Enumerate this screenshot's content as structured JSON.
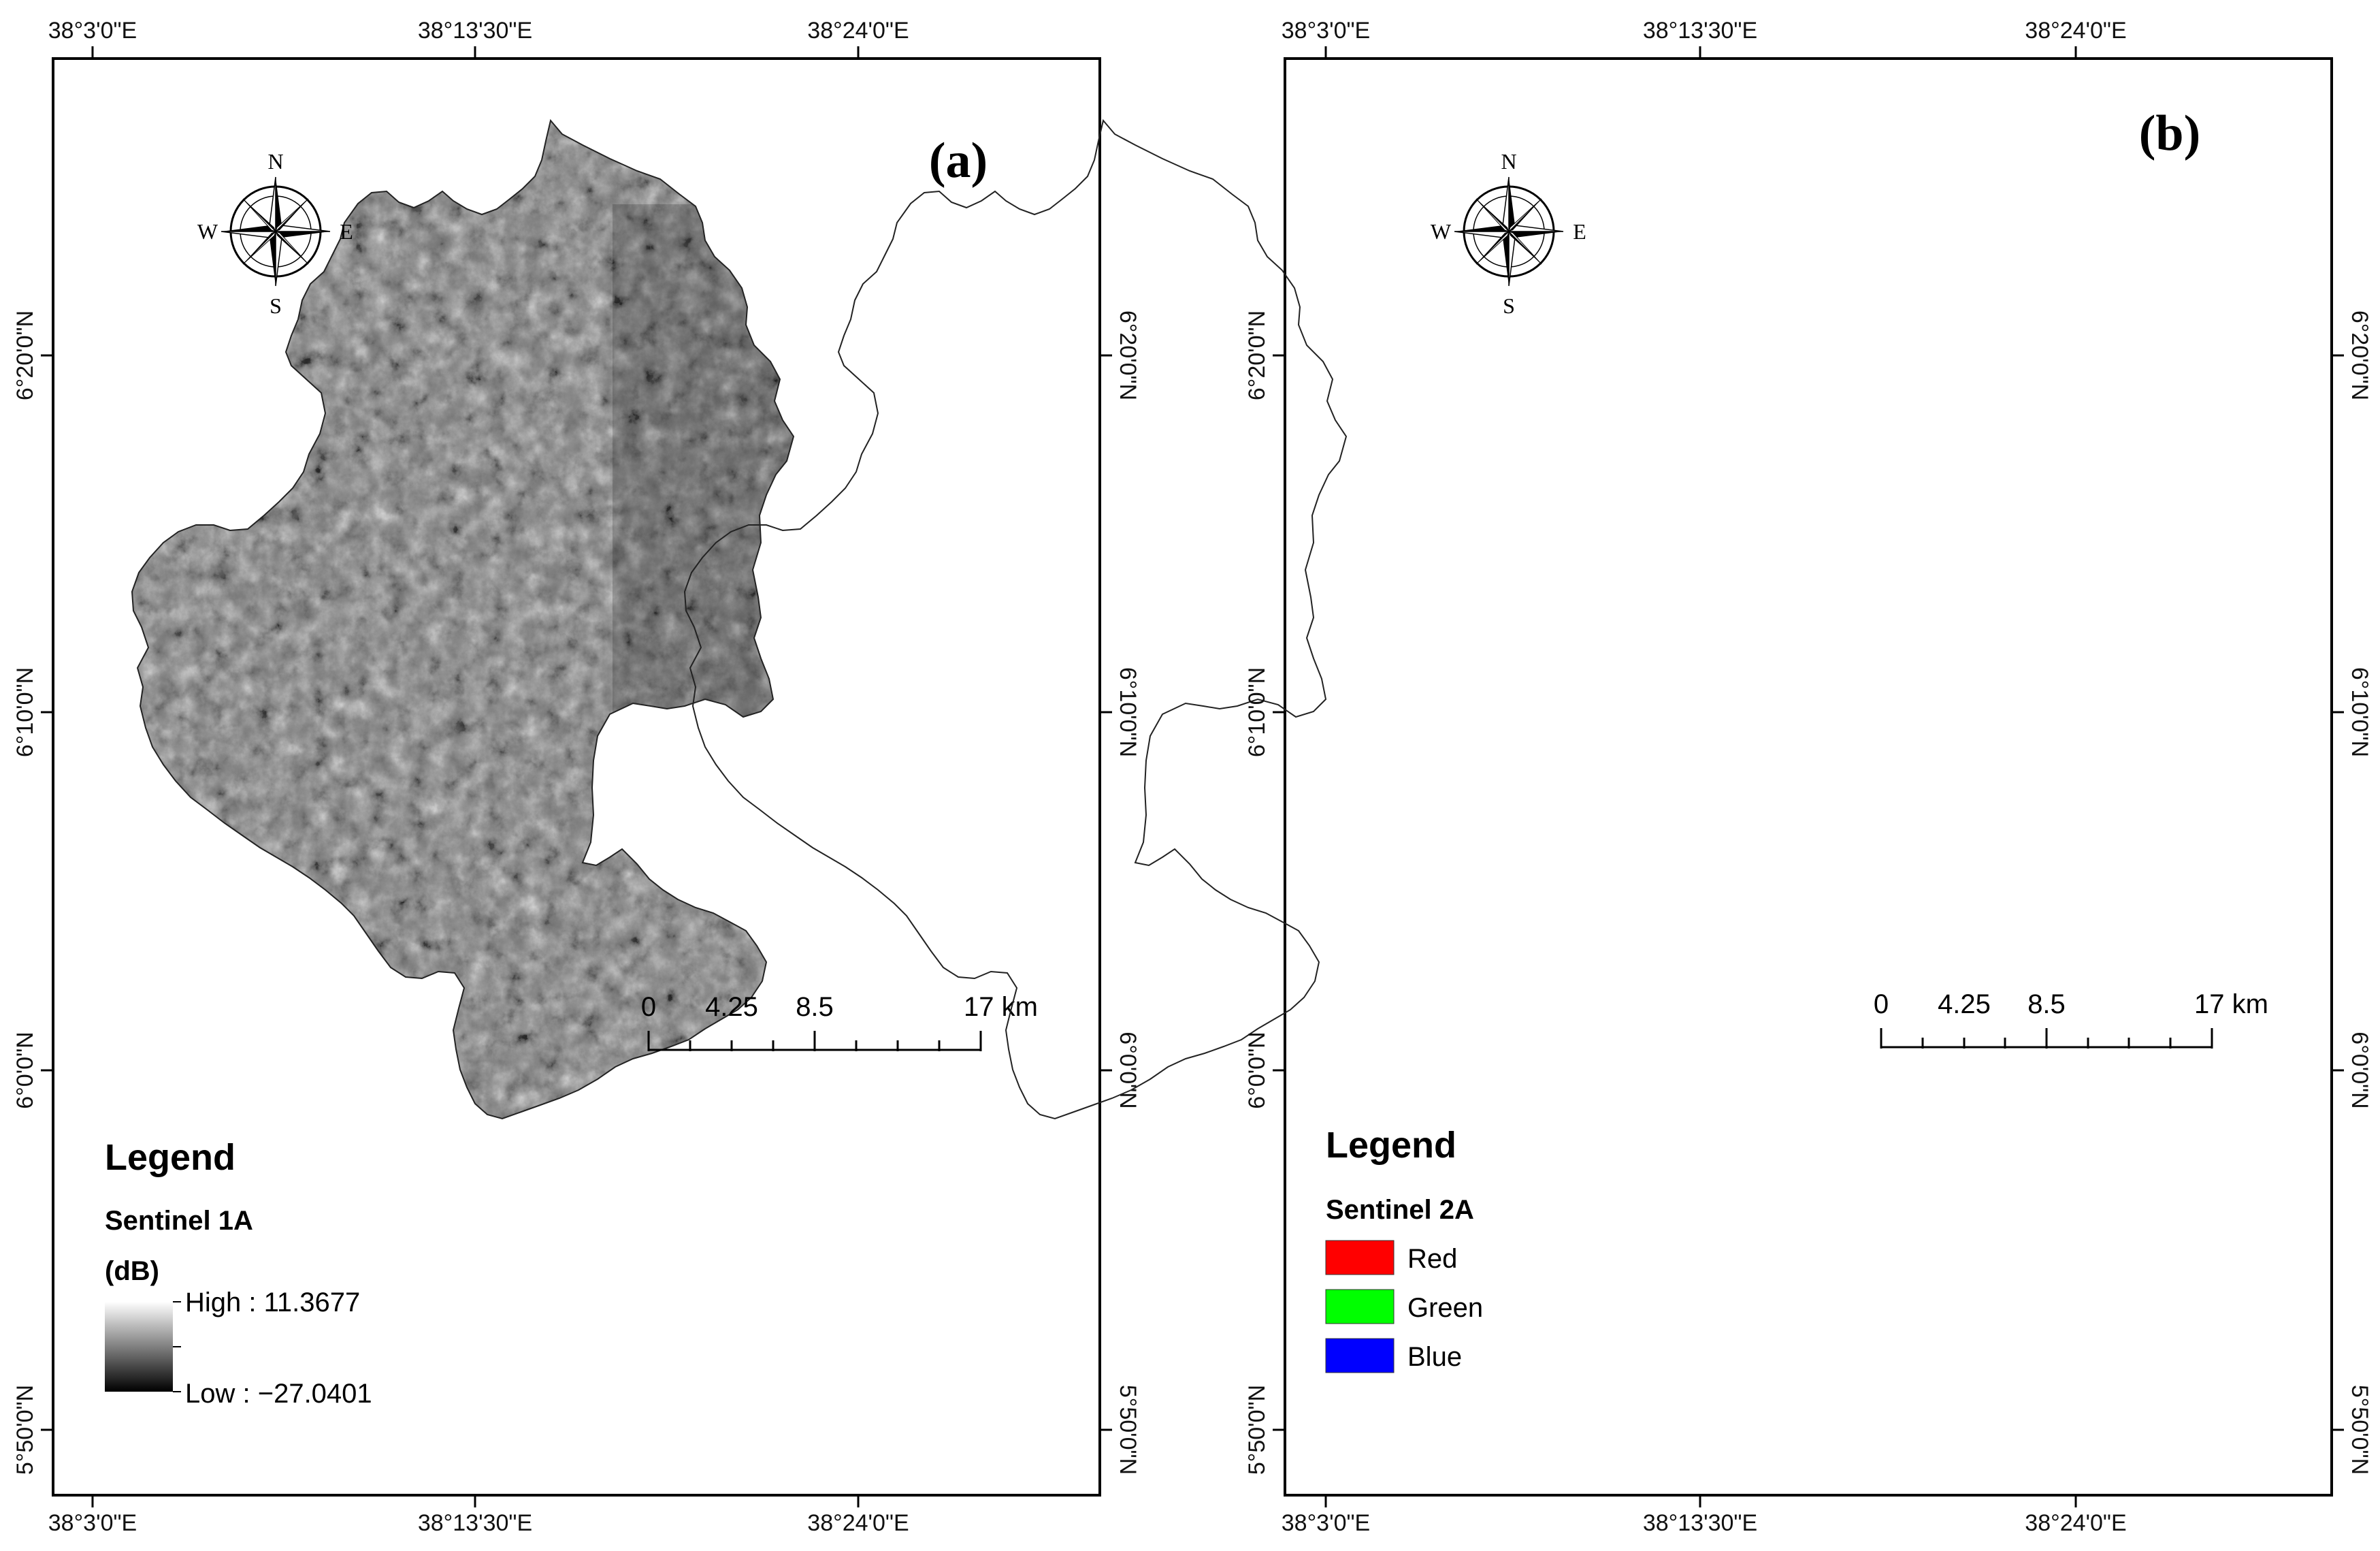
{
  "panels": [
    {
      "id": "a",
      "label": "(a)",
      "top_ticks": [
        "38°3'0\"E",
        "38°13'30\"E",
        "38°24'0\"E"
      ],
      "bottom_ticks": [
        "38°3'0\"E",
        "38°13'30\"E",
        "38°24'0\"E"
      ],
      "left_ticks": [
        "6°20'0\"N",
        "6°10'0\"N",
        "6°0'0\"N",
        "5°50'0\"N"
      ],
      "right_ticks": [
        "6°20'0\"N",
        "6°10'0\"N",
        "6°0'0\"N",
        "5°50'0\"N"
      ],
      "compass": {
        "n": "N",
        "s": "S",
        "e": "E",
        "w": "W"
      },
      "scale": {
        "labels": [
          "0",
          "4.25",
          "8.5",
          "17 km"
        ]
      },
      "legend": {
        "title": "Legend",
        "subtitle_line1": "Sentinel 1A",
        "subtitle_line2": "(dB)",
        "high_label": "High : 11.3677",
        "low_label": "Low : −27.0401"
      },
      "map_color": "#7a7a7a"
    },
    {
      "id": "b",
      "label": "(b)",
      "top_ticks": [
        "38°3'0\"E",
        "38°13'30\"E",
        "38°24'0\"E"
      ],
      "bottom_ticks": [
        "38°3'0\"E",
        "38°13'30\"E",
        "38°24'0\"E"
      ],
      "left_ticks": [
        "6°20'0\"N",
        "6°10'0\"N",
        "6°0'0\"N",
        "5°50'0\"N"
      ],
      "right_ticks": [
        "6°20'0\"N",
        "6°10'0\"N",
        "6°0'0\"N",
        "5°50'0\"N"
      ],
      "compass": {
        "n": "N",
        "s": "S",
        "e": "E",
        "w": "W"
      },
      "scale": {
        "labels": [
          "0",
          "4.25",
          "8.5",
          "17 km"
        ]
      },
      "legend": {
        "title": "Legend",
        "subtitle_line1": "Sentinel 2A",
        "items": [
          {
            "label": "Red",
            "color": "#ff0000"
          },
          {
            "label": "Green",
            "color": "#00ff00"
          },
          {
            "label": "Blue",
            "color": "#0000ff"
          }
        ]
      },
      "map_color": "#d96a85"
    }
  ]
}
